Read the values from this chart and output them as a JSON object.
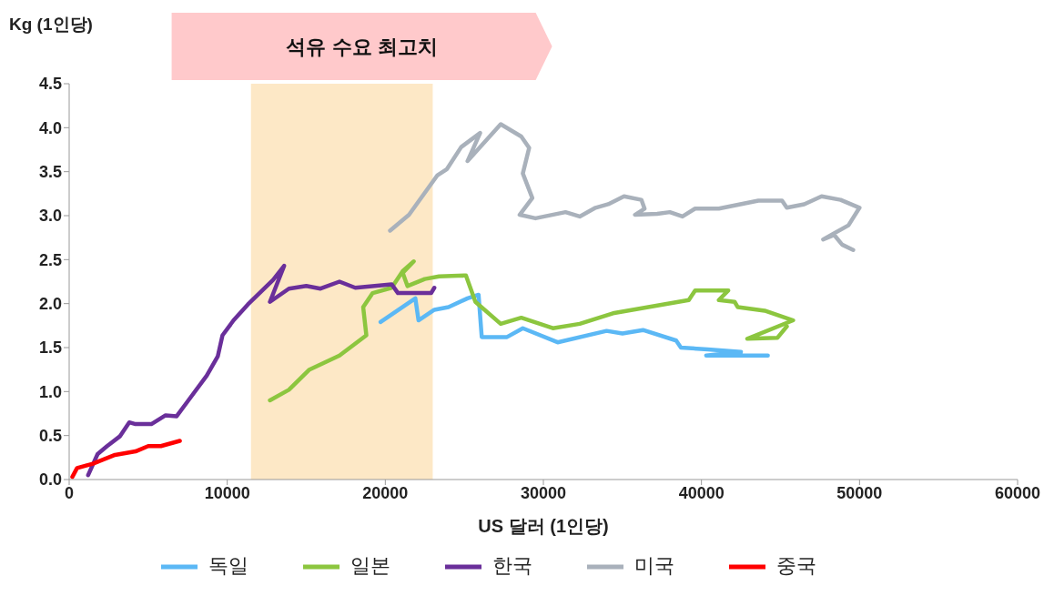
{
  "chart_data": {
    "type": "line",
    "xlabel": "US 달러 (1인당)",
    "ylabel": "Kg (1인당)",
    "xlim": [
      0,
      60000
    ],
    "xticks": [
      0,
      10000,
      20000,
      30000,
      40000,
      50000,
      60000
    ],
    "ylim": [
      0,
      4.5
    ],
    "yticks": [
      {
        "value": 0,
        "label": "0.0"
      },
      0.5,
      {
        "value": 1,
        "label": "1.0"
      },
      1.5,
      {
        "value": 2,
        "label": "2.0"
      },
      2.5,
      {
        "value": 3,
        "label": "3.0"
      },
      3.5,
      {
        "value": 4,
        "label": "4.0"
      },
      4.5
    ],
    "legend": "bottom",
    "bands": [
      {
        "axis": "x",
        "from": 11500,
        "to": 23000,
        "label": "석유 수요 최고치",
        "color": "#fde8c6"
      }
    ],
    "series": [
      {
        "name": "독일",
        "color": "#5bb8f5",
        "x": [
          19700,
          21900,
          22100,
          23100,
          24000,
          25200,
          25900,
          26100,
          27700,
          28700,
          30900,
          34000,
          35000,
          36300,
          38400,
          38700,
          40400,
          42500,
          40300,
          41700,
          44200
        ],
        "values": [
          1.79,
          2.06,
          1.81,
          1.93,
          1.96,
          2.06,
          2.1,
          1.62,
          1.62,
          1.72,
          1.56,
          1.69,
          1.66,
          1.7,
          1.58,
          1.5,
          1.48,
          1.45,
          1.41,
          1.41,
          1.41
        ]
      },
      {
        "name": "일본",
        "color": "#8cc63f",
        "x": [
          12700,
          13900,
          15200,
          17100,
          18800,
          18600,
          19200,
          20400,
          21100,
          21800,
          21100,
          21400,
          22500,
          23400,
          25100,
          25700,
          27300,
          28600,
          30600,
          32300,
          34400,
          39200,
          39600,
          41700,
          41100,
          42100,
          42300,
          44000,
          45800,
          42900,
          44800,
          45400
        ],
        "values": [
          0.9,
          1.02,
          1.25,
          1.41,
          1.64,
          1.96,
          2.12,
          2.18,
          2.37,
          2.48,
          2.35,
          2.2,
          2.28,
          2.31,
          2.32,
          2.02,
          1.77,
          1.84,
          1.72,
          1.77,
          1.89,
          2.04,
          2.15,
          2.15,
          2.04,
          2.02,
          1.96,
          1.92,
          1.81,
          1.6,
          1.61,
          1.74
        ]
      },
      {
        "name": "한국",
        "color": "#6a2f9a",
        "x": [
          1200,
          1800,
          2400,
          3200,
          3800,
          4200,
          5200,
          6100,
          6800,
          7500,
          8700,
          9400,
          9700,
          10400,
          11300,
          12900,
          13600,
          12700,
          13900,
          15000,
          15900,
          17100,
          18100,
          20400,
          20800,
          22900,
          23100
        ],
        "values": [
          0.05,
          0.29,
          0.38,
          0.49,
          0.65,
          0.63,
          0.63,
          0.73,
          0.72,
          0.89,
          1.18,
          1.4,
          1.64,
          1.81,
          1.99,
          2.27,
          2.43,
          2.02,
          2.17,
          2.2,
          2.17,
          2.25,
          2.18,
          2.22,
          2.12,
          2.12,
          2.18
        ]
      },
      {
        "name": "미국",
        "color": "#a9b1bb",
        "x": [
          20300,
          21500,
          23300,
          23900,
          24800,
          26000,
          25200,
          27300,
          28600,
          29100,
          28700,
          29300,
          28500,
          29500,
          31400,
          32300,
          33300,
          34100,
          35100,
          36200,
          36400,
          35800,
          37200,
          38000,
          38800,
          39600,
          41100,
          43600,
          45100,
          45400,
          46500,
          47600,
          48800,
          50000,
          49300,
          47700,
          48400,
          48900,
          49600
        ],
        "values": [
          2.83,
          3.01,
          3.46,
          3.53,
          3.78,
          3.94,
          3.62,
          4.04,
          3.9,
          3.77,
          3.48,
          3.2,
          3.01,
          2.97,
          3.04,
          2.99,
          3.09,
          3.13,
          3.22,
          3.18,
          3.08,
          3.01,
          3.02,
          3.04,
          2.99,
          3.08,
          3.08,
          3.17,
          3.17,
          3.09,
          3.13,
          3.22,
          3.18,
          3.09,
          2.89,
          2.73,
          2.78,
          2.67,
          2.61
        ]
      },
      {
        "name": "중국",
        "color": "#ff0000",
        "x": [
          200,
          500,
          1500,
          2900,
          4200,
          5000,
          5800,
          7000
        ],
        "values": [
          0.03,
          0.13,
          0.18,
          0.28,
          0.32,
          0.38,
          0.38,
          0.44
        ]
      }
    ]
  }
}
